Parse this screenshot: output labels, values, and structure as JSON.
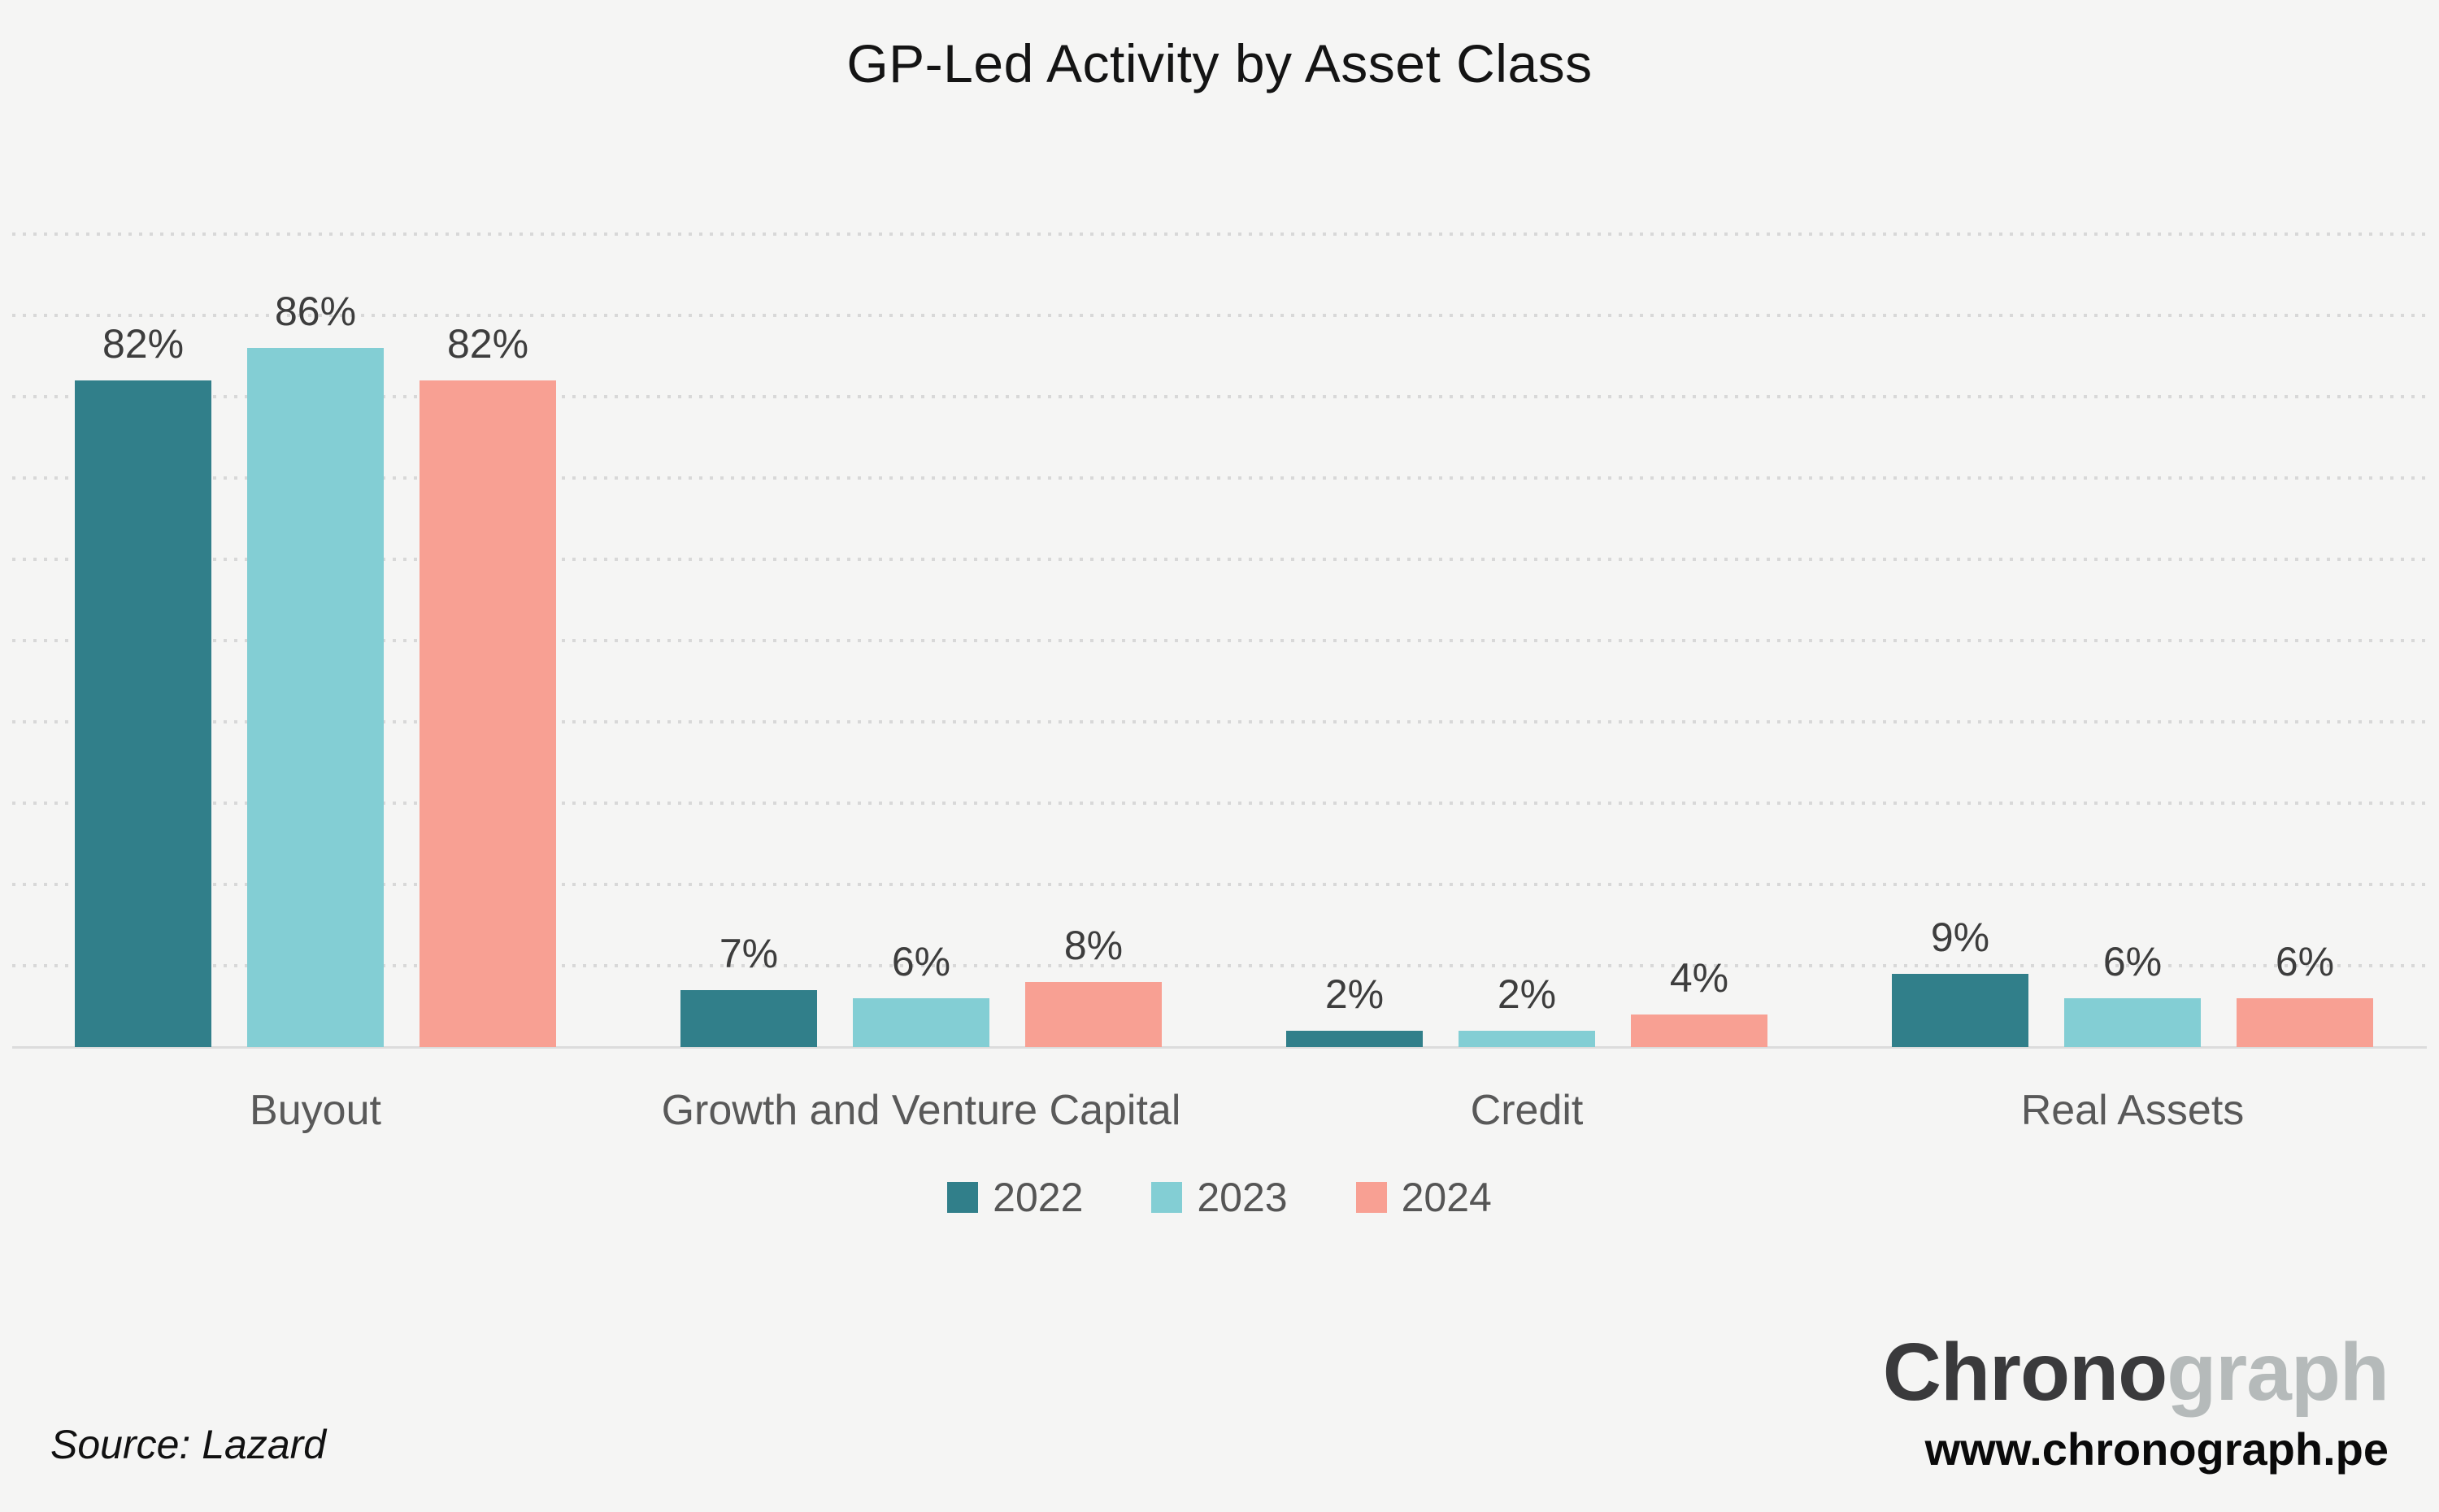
{
  "chart_data": {
    "type": "bar",
    "title": "GP-Led Activity by Asset Class",
    "categories": [
      "Buyout",
      "Growth and Venture Capital",
      "Credit",
      "Real Assets"
    ],
    "series": [
      {
        "name": "2022",
        "color": "#317f8a",
        "values": [
          82,
          7,
          2,
          9
        ]
      },
      {
        "name": "2023",
        "color": "#83ced4",
        "values": [
          86,
          6,
          2,
          6
        ]
      },
      {
        "name": "2024",
        "color": "#f8a093",
        "values": [
          82,
          8,
          4,
          6
        ]
      }
    ],
    "value_suffix": "%",
    "ylim": [
      0,
      100
    ],
    "gridline_step": 10,
    "grid": "dotted-horizontal",
    "legend_position": "bottom",
    "colors": {
      "background": "#f5f5f4",
      "gridline": "#d8d8d8",
      "axis_line": "#dcdcdc",
      "value_label": "#3d3d3d",
      "category_label": "#595959"
    }
  },
  "footer": {
    "source": "Source: Lazard",
    "logo_dark": "Chrono",
    "logo_light": "graph",
    "url": "www.chronograph.pe"
  }
}
